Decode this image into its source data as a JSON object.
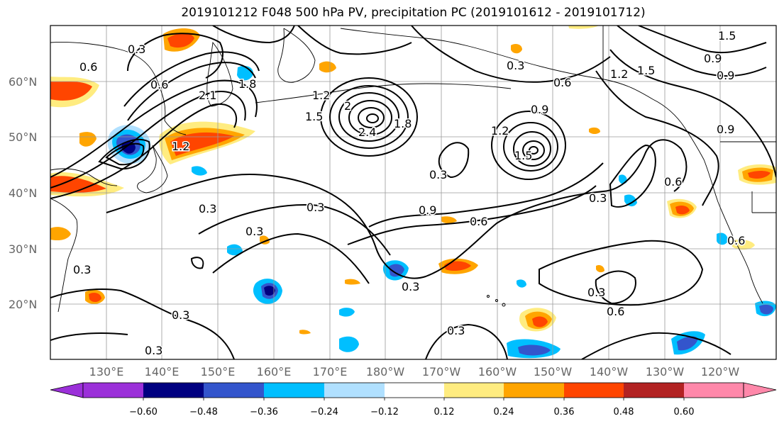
{
  "title": "2019101212 F048 500 hPa PV, precipitation PC (2019101612 - 2019101712)",
  "lat_labels": [
    "60°N",
    "50°N",
    "40°N",
    "30°N",
    "20°N"
  ],
  "lon_labels": [
    "130°E",
    "140°E",
    "150°E",
    "160°E",
    "170°E",
    "180°W",
    "170°W",
    "160°W",
    "150°W",
    "140°W",
    "130°W",
    "120°W"
  ],
  "colorbar": {
    "ticks": [
      "−0.60",
      "−0.48",
      "−0.36",
      "−0.24",
      "−0.12",
      "0.12",
      "0.24",
      "0.36",
      "0.48",
      "0.60"
    ],
    "colors": [
      "#9b30d9",
      "#000080",
      "#3355cc",
      "#00bfff",
      "#b0e0ff",
      "#ffffff",
      "#ffec80",
      "#ffa500",
      "#ff4500",
      "#b22222",
      "#ff88aa"
    ]
  },
  "contour_labels": [
    "0.3",
    "0.6",
    "0.9",
    "1.2",
    "1.5",
    "1.8",
    "2",
    "2.1",
    "2.4"
  ],
  "colors": {
    "contour": "#000000",
    "grid": "#9a9a9a",
    "coastline": "#000000"
  }
}
